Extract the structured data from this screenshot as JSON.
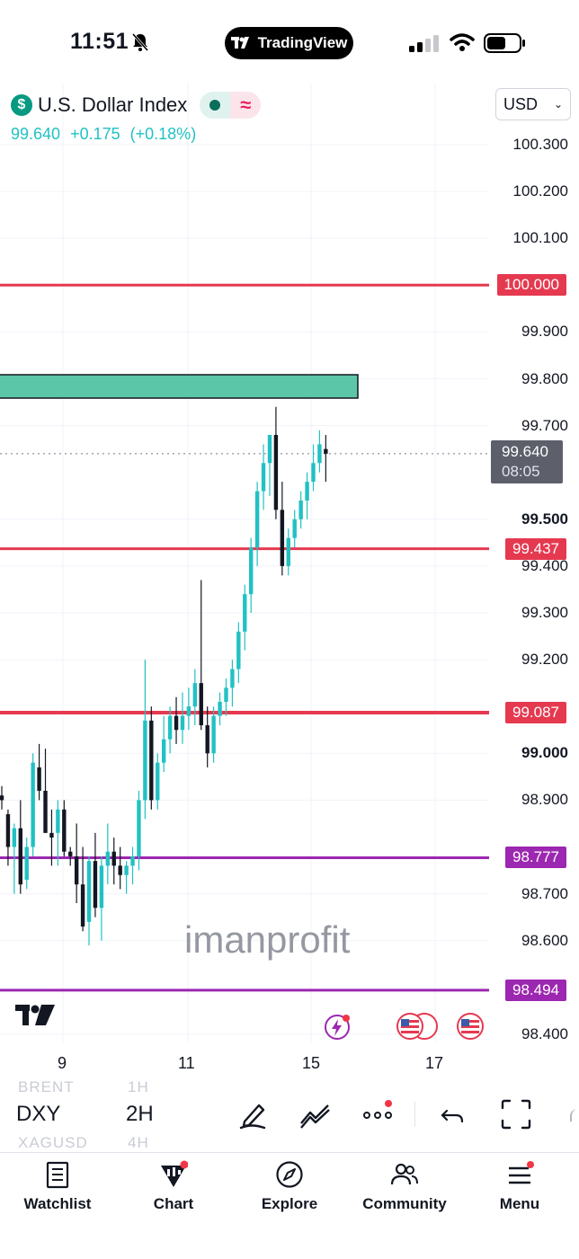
{
  "status_bar": {
    "time": "11:51",
    "app_label": "TradingView"
  },
  "header": {
    "symbol_name": "U.S. Dollar Index",
    "last_price": "99.640",
    "change": "+0.175",
    "change_pct": "(+0.18%)",
    "currency": "USD"
  },
  "colors": {
    "up": "#22c1c3",
    "down": "#131722",
    "red_level": "#e53950",
    "purple_level": "#9c27b0",
    "zone": "#5cc6a8",
    "last_price_bg": "#5d606b"
  },
  "chart_data": {
    "type": "candlestick",
    "symbol": "DXY",
    "timeframe": "2H",
    "y_ticks": [
      "100.300",
      "100.200",
      "100.100",
      "99.900",
      "99.800",
      "99.700",
      "99.500",
      "99.400",
      "99.300",
      "99.200",
      "99.000",
      "98.900",
      "98.700",
      "98.600",
      "98.400"
    ],
    "bold_ticks": [
      "99.500",
      "99.000"
    ],
    "ylim": [
      98.38,
      100.38
    ],
    "x_ticks": [
      "9",
      "11",
      "15",
      "17"
    ],
    "horizontal_levels": [
      {
        "label": "100.000",
        "value": 100.0,
        "color": "red"
      },
      {
        "label": "99.437",
        "value": 99.437,
        "color": "red"
      },
      {
        "label": "99.087",
        "value": 99.087,
        "color": "red"
      },
      {
        "label": "98.777",
        "value": 98.777,
        "color": "purple"
      },
      {
        "label": "98.494",
        "value": 98.494,
        "color": "purple"
      }
    ],
    "zone": {
      "low": 99.75,
      "high": 99.8
    },
    "last_price": {
      "value": "99.640",
      "countdown": "08:05"
    },
    "candles": [
      [
        98.91,
        98.93,
        98.88,
        98.9
      ],
      [
        98.87,
        98.88,
        98.76,
        98.8
      ],
      [
        98.8,
        98.85,
        98.7,
        98.84
      ],
      [
        98.84,
        98.9,
        98.7,
        98.72
      ],
      [
        98.73,
        98.82,
        98.71,
        98.8
      ],
      [
        98.8,
        99.0,
        98.78,
        98.98
      ],
      [
        98.97,
        99.02,
        98.9,
        98.92
      ],
      [
        98.92,
        99.01,
        98.83,
        98.83
      ],
      [
        98.83,
        98.88,
        98.76,
        98.82
      ],
      [
        98.83,
        98.9,
        98.76,
        98.88
      ],
      [
        98.88,
        98.9,
        98.78,
        98.79
      ],
      [
        98.79,
        98.8,
        98.76,
        98.78
      ],
      [
        98.78,
        98.85,
        98.68,
        98.72
      ],
      [
        98.72,
        98.8,
        98.62,
        98.63
      ],
      [
        98.64,
        98.78,
        98.59,
        98.77
      ],
      [
        98.77,
        98.83,
        98.65,
        98.67
      ],
      [
        98.67,
        98.78,
        98.6,
        98.76
      ],
      [
        98.76,
        98.85,
        98.72,
        98.79
      ],
      [
        98.79,
        98.82,
        98.72,
        98.76
      ],
      [
        98.76,
        98.8,
        98.71,
        98.74
      ],
      [
        98.74,
        98.77,
        98.7,
        98.76
      ],
      [
        98.76,
        98.8,
        98.72,
        98.78
      ],
      [
        98.78,
        98.92,
        98.75,
        98.9
      ],
      [
        98.9,
        99.2,
        98.86,
        99.07
      ],
      [
        99.07,
        99.1,
        98.88,
        98.9
      ],
      [
        98.9,
        99.0,
        98.88,
        98.98
      ],
      [
        98.98,
        99.08,
        98.96,
        99.03
      ],
      [
        99.03,
        99.1,
        99.0,
        99.08
      ],
      [
        99.08,
        99.12,
        99.02,
        99.05
      ],
      [
        99.05,
        99.13,
        99.02,
        99.08
      ],
      [
        99.08,
        99.14,
        99.05,
        99.1
      ],
      [
        99.1,
        99.18,
        99.06,
        99.15
      ],
      [
        99.15,
        99.37,
        99.05,
        99.06
      ],
      [
        99.06,
        99.1,
        98.97,
        99.0
      ],
      [
        99.0,
        99.1,
        98.98,
        99.08
      ],
      [
        99.08,
        99.13,
        99.06,
        99.11
      ],
      [
        99.11,
        99.16,
        99.08,
        99.14
      ],
      [
        99.14,
        99.2,
        99.1,
        99.18
      ],
      [
        99.18,
        99.28,
        99.15,
        99.26
      ],
      [
        99.26,
        99.36,
        99.22,
        99.34
      ],
      [
        99.34,
        99.46,
        99.3,
        99.44
      ],
      [
        99.44,
        99.58,
        99.4,
        99.56
      ],
      [
        99.56,
        99.66,
        99.52,
        99.62
      ],
      [
        99.62,
        99.68,
        99.55,
        99.68
      ],
      [
        99.68,
        99.74,
        99.5,
        99.52
      ],
      [
        99.52,
        99.58,
        99.38,
        99.4
      ],
      [
        99.4,
        99.48,
        99.38,
        99.46
      ],
      [
        99.46,
        99.52,
        99.44,
        99.5
      ],
      [
        99.5,
        99.56,
        99.48,
        99.54
      ],
      [
        99.54,
        99.6,
        99.5,
        99.58
      ],
      [
        99.58,
        99.66,
        99.56,
        99.62
      ],
      [
        99.62,
        99.69,
        99.6,
        99.66
      ],
      [
        99.65,
        99.68,
        99.58,
        99.64
      ]
    ]
  },
  "watermark": "imanprofit",
  "toolbar": {
    "symbol": "DXY",
    "timeframe": "2H",
    "ghost_symbol_above": "BRENT",
    "ghost_tf_above": "1H",
    "ghost_symbol_below": "XAGUSD",
    "ghost_tf_below": "4H"
  },
  "nav": {
    "watchlist": "Watchlist",
    "chart": "Chart",
    "explore": "Explore",
    "community": "Community",
    "menu": "Menu"
  }
}
